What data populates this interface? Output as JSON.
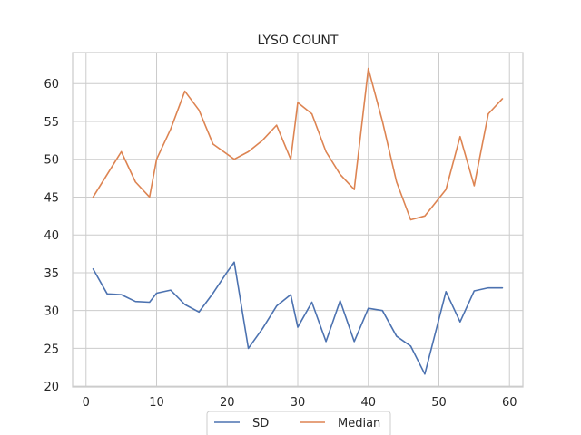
{
  "chart_data": {
    "type": "line",
    "title": "LYSO COUNT",
    "xlabel": "",
    "ylabel": "",
    "xlim": [
      -1.9,
      61.9
    ],
    "ylim": [
      19.9,
      64.1
    ],
    "xticks": [
      0,
      10,
      20,
      30,
      40,
      50,
      60
    ],
    "yticks": [
      20,
      25,
      30,
      35,
      40,
      45,
      50,
      55,
      60
    ],
    "grid": true,
    "legend_position": "bottom-center",
    "series": [
      {
        "name": "SD",
        "color": "#4c72b0",
        "x": [
          1,
          3,
          5,
          7,
          9,
          10,
          12,
          14,
          16,
          18,
          20,
          21,
          23,
          25,
          27,
          29,
          30,
          32,
          34,
          36,
          38,
          40,
          42,
          44,
          46,
          48,
          51,
          53,
          55,
          57,
          59
        ],
        "y": [
          35.5,
          32.2,
          32.1,
          31.2,
          31.1,
          32.3,
          32.7,
          30.8,
          29.8,
          32.3,
          35.1,
          36.4,
          25.0,
          27.6,
          30.6,
          32.1,
          27.8,
          31.1,
          25.9,
          31.3,
          25.9,
          30.3,
          30.0,
          26.6,
          25.3,
          21.6,
          32.5,
          28.5,
          32.6,
          33.0,
          33.0
        ]
      },
      {
        "name": "Median",
        "color": "#dd8452",
        "x": [
          1,
          5,
          7,
          9,
          10,
          12,
          14,
          16,
          18,
          21,
          23,
          25,
          27,
          29,
          30,
          32,
          34,
          36,
          38,
          40,
          42,
          44,
          46,
          48,
          51,
          53,
          55,
          57,
          59
        ],
        "y": [
          45,
          51,
          47,
          45,
          50,
          54,
          59,
          56.5,
          52,
          50,
          51,
          52.5,
          54.5,
          50,
          57.5,
          56,
          51,
          48,
          46,
          62,
          55,
          47,
          42,
          42.5,
          46,
          53,
          46.5,
          56,
          58
        ]
      }
    ]
  }
}
